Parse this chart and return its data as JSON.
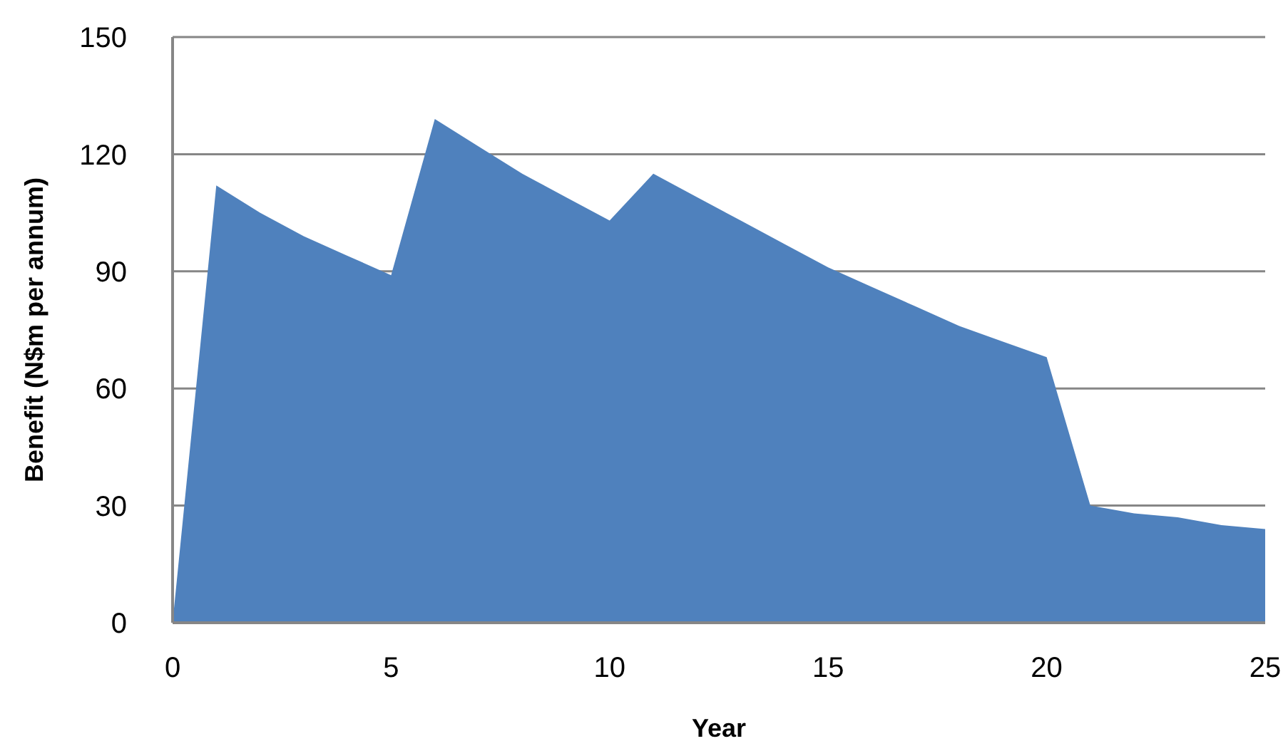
{
  "chart_data": {
    "type": "area",
    "xlabel": "Year",
    "ylabel": "Benefit (N$m per annum)",
    "x": [
      0,
      1,
      2,
      3,
      4,
      5,
      6,
      7,
      8,
      9,
      10,
      11,
      12,
      13,
      14,
      15,
      16,
      17,
      18,
      19,
      20,
      21,
      22,
      23,
      24,
      25
    ],
    "values": [
      0,
      112,
      105,
      99,
      94,
      89,
      129,
      122,
      115,
      109,
      103,
      115,
      109,
      103,
      97,
      91,
      86,
      81,
      76,
      72,
      68,
      30,
      28,
      27,
      25,
      24
    ],
    "color": "#4f81bd",
    "xlim": [
      0,
      25
    ],
    "xticks": [
      0,
      5,
      10,
      15,
      20,
      25
    ],
    "ylim": [
      0,
      150
    ],
    "yticks": [
      0,
      30,
      60,
      90,
      120,
      150
    ],
    "grid": "y"
  }
}
